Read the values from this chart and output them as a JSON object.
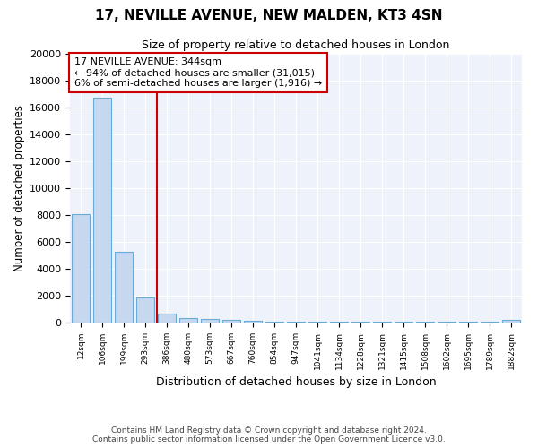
{
  "title1": "17, NEVILLE AVENUE, NEW MALDEN, KT3 4SN",
  "title2": "Size of property relative to detached houses in London",
  "xlabel": "Distribution of detached houses by size in London",
  "ylabel": "Number of detached properties",
  "bar_labels": [
    "12sqm",
    "106sqm",
    "199sqm",
    "293sqm",
    "386sqm",
    "480sqm",
    "573sqm",
    "667sqm",
    "760sqm",
    "854sqm",
    "947sqm",
    "1041sqm",
    "1134sqm",
    "1228sqm",
    "1321sqm",
    "1415sqm",
    "1508sqm",
    "1602sqm",
    "1695sqm",
    "1789sqm",
    "1882sqm"
  ],
  "bar_heights": [
    8100,
    16700,
    5300,
    1900,
    700,
    350,
    300,
    200,
    150,
    100,
    100,
    100,
    100,
    100,
    100,
    100,
    100,
    100,
    100,
    100,
    200
  ],
  "bar_color": "#c5d8f0",
  "bar_edgecolor": "#6aaad4",
  "bar_linewidth": 0.8,
  "ylim": [
    0,
    20000
  ],
  "yticks": [
    0,
    2000,
    4000,
    6000,
    8000,
    10000,
    12000,
    14000,
    16000,
    18000,
    20000
  ],
  "red_line_x": 3.55,
  "red_line_color": "#cc0000",
  "annotation_text": "17 NEVILLE AVENUE: 344sqm\n← 94% of detached houses are smaller (31,015)\n6% of semi-detached houses are larger (1,916) →",
  "annotation_box_color": "#ffffff",
  "annotation_box_edgecolor": "#cc0000",
  "footer_text": "Contains HM Land Registry data © Crown copyright and database right 2024.\nContains public sector information licensed under the Open Government Licence v3.0.",
  "background_color": "#eef2fb",
  "grid_color": "#ffffff",
  "fig_facecolor": "#ffffff"
}
